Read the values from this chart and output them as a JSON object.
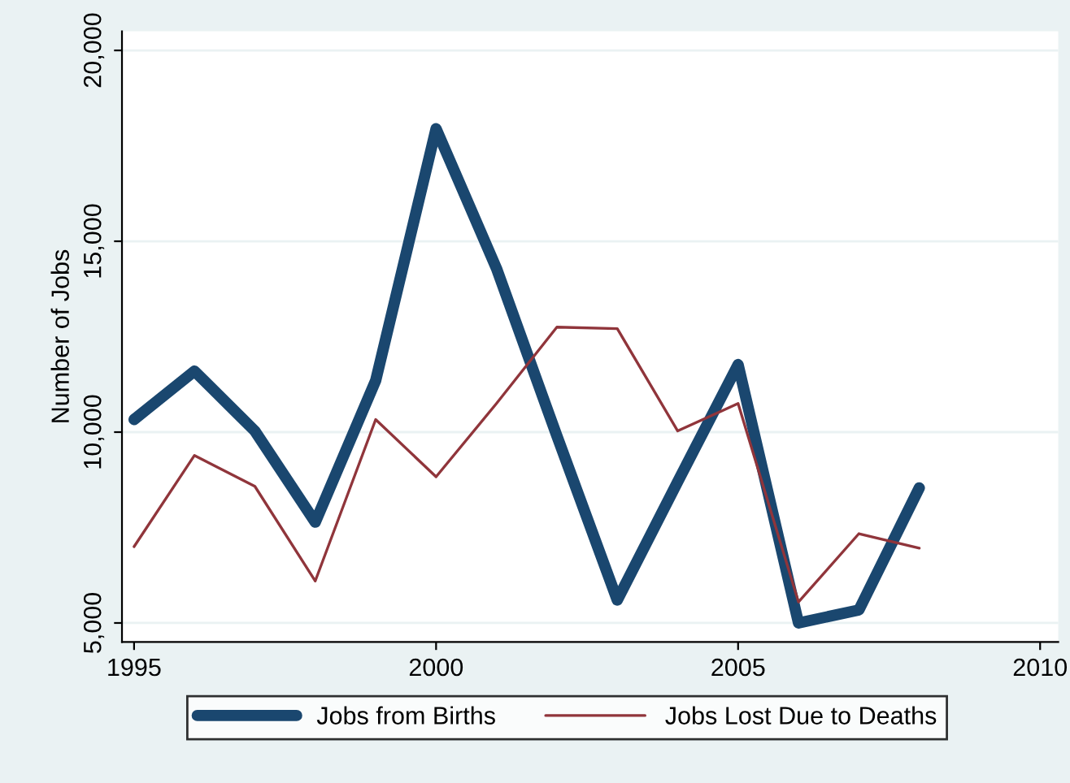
{
  "chart_data": {
    "type": "line",
    "ylabel": "Number of Jobs",
    "x": [
      1995,
      1996,
      1997,
      1998,
      1999,
      2000,
      2001,
      2002,
      2003,
      2004,
      2005,
      2006,
      2007,
      2008
    ],
    "series": [
      {
        "name": "Jobs from Births",
        "color": "#1a476f",
        "values": [
          10330,
          11600,
          10030,
          7640,
          11350,
          17950,
          14290,
          9900,
          5600,
          8700,
          11770,
          5000,
          5340,
          8540
        ]
      },
      {
        "name": "Jobs Lost Due to Deaths",
        "color": "#90353b",
        "values": [
          7000,
          9390,
          8580,
          6100,
          10330,
          8830,
          10750,
          12750,
          12710,
          10030,
          10750,
          5550,
          7340,
          6960
        ]
      }
    ],
    "xlim": [
      1994.8,
      2010.3
    ],
    "xticks": [
      1995,
      2000,
      2005,
      2010
    ],
    "ylim": [
      4500,
      20500
    ],
    "yticks": [
      {
        "value": 5000,
        "label": "5,000"
      },
      {
        "value": 10000,
        "label": "10,000"
      },
      {
        "value": 15000,
        "label": "15,000"
      },
      {
        "value": 20000,
        "label": "20,000"
      }
    ],
    "grid": "y",
    "legend": "bottom",
    "marker": "none",
    "line_style": "solid"
  }
}
